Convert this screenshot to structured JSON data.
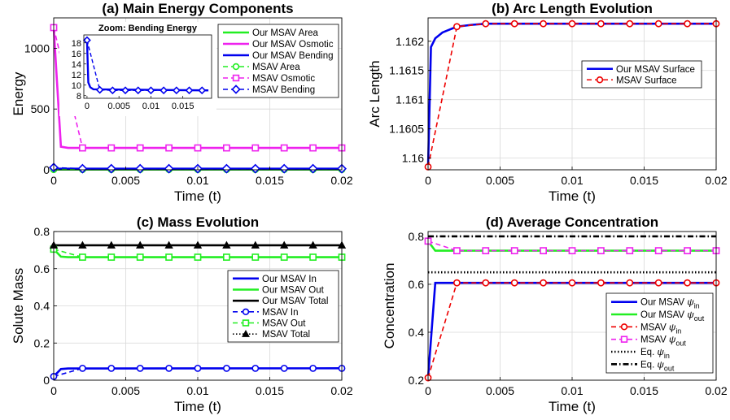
{
  "colors": {
    "green": "#22ee22",
    "magenta": "#ee22ee",
    "blue": "#0000ee",
    "red": "#ee0000",
    "black": "#000000",
    "grid": "#d8d8d8"
  },
  "chart_data": [
    {
      "id": "a",
      "type": "line",
      "title": "(a) Main Energy Components",
      "xlabel": "Time (t)",
      "ylabel": "Energy",
      "xlim": [
        0,
        0.02
      ],
      "ylim": [
        0,
        1250
      ],
      "xticks": [
        0,
        0.005,
        0.01,
        0.015,
        0.02
      ],
      "xtick_labels": [
        "0",
        "0.005",
        "0.01",
        "0.015",
        "0.02"
      ],
      "yticks": [
        0,
        500,
        1000
      ],
      "ytick_labels": [
        "0",
        "500",
        "1000"
      ],
      "legend_position": "top-right",
      "series": [
        {
          "name": "Our MSAV Area",
          "color": "green",
          "marker": "none",
          "x": [
            0,
            0.0002,
            0.02
          ],
          "y": [
            2,
            2,
            2
          ]
        },
        {
          "name": "Our MSAV Osmotic",
          "color": "magenta",
          "marker": "none",
          "x": [
            0,
            0.0005,
            0.001,
            0.02
          ],
          "y": [
            1170,
            190,
            180,
            180
          ]
        },
        {
          "name": "Our MSAV Bending",
          "color": "blue",
          "marker": "none",
          "x": [
            0,
            0.0002,
            0.0005,
            0.02
          ],
          "y": [
            18.5,
            10,
            9,
            9
          ]
        },
        {
          "name": "MSAV Area",
          "color": "green",
          "marker": "circle",
          "x": [
            0,
            0.002,
            0.004,
            0.006,
            0.008,
            0.01,
            0.012,
            0.014,
            0.016,
            0.018,
            0.02
          ],
          "y": [
            2,
            2,
            2,
            2,
            2,
            2,
            2,
            2,
            2,
            2,
            2
          ]
        },
        {
          "name": "MSAV Osmotic",
          "color": "magenta",
          "marker": "square",
          "x": [
            0,
            0.002,
            0.004,
            0.006,
            0.008,
            0.01,
            0.012,
            0.014,
            0.016,
            0.018,
            0.02
          ],
          "y": [
            1170,
            180,
            180,
            180,
            180,
            180,
            180,
            180,
            180,
            180,
            180
          ]
        },
        {
          "name": "MSAV Bending",
          "color": "blue",
          "marker": "diamond",
          "x": [
            0,
            0.002,
            0.004,
            0.006,
            0.008,
            0.01,
            0.012,
            0.014,
            0.016,
            0.018,
            0.02
          ],
          "y": [
            18.5,
            9,
            9,
            9,
            9,
            9,
            9,
            9,
            9,
            9,
            9
          ]
        }
      ],
      "inset": {
        "title": "Zoom: Bending Energy",
        "xlim": [
          -0.0005,
          0.0195
        ],
        "ylim": [
          7.5,
          19.5
        ],
        "xticks": [
          0,
          0.005,
          0.01,
          0.015
        ],
        "xtick_labels": [
          "0",
          "0.005",
          "0.01",
          "0.015"
        ],
        "yticks": [
          8,
          10,
          12,
          14,
          16,
          18
        ],
        "ytick_labels": [
          "8",
          "10",
          "12",
          "14",
          "16",
          "18"
        ],
        "series": [
          {
            "name": "Our MSAV Bending",
            "color": "blue",
            "marker": "none",
            "x": [
              0,
              0.0002,
              0.0005,
              0.001,
              0.019
            ],
            "y": [
              18.5,
              10.5,
              9.6,
              9.2,
              9.0
            ]
          },
          {
            "name": "MSAV Bending",
            "color": "blue",
            "marker": "diamond",
            "x": [
              0,
              0.002,
              0.004,
              0.006,
              0.008,
              0.01,
              0.012,
              0.014,
              0.016,
              0.018
            ],
            "y": [
              18.5,
              9.1,
              9.0,
              9.0,
              9.0,
              9.0,
              9.0,
              9.0,
              9.0,
              9.0
            ]
          }
        ]
      }
    },
    {
      "id": "b",
      "type": "line",
      "title": "(b) Arc Length Evolution",
      "xlabel": "Time (t)",
      "ylabel": "Arc Length",
      "xlim": [
        0,
        0.02
      ],
      "ylim": [
        1.1598,
        1.1624
      ],
      "xticks": [
        0,
        0.005,
        0.01,
        0.015,
        0.02
      ],
      "xtick_labels": [
        "0",
        "0.005",
        "0.01",
        "0.015",
        "0.02"
      ],
      "yticks": [
        1.16,
        1.1605,
        1.161,
        1.1615,
        1.162
      ],
      "ytick_labels": [
        "1.16",
        "1.1605",
        "1.161",
        "1.1615",
        "1.162"
      ],
      "legend_position": "right",
      "series": [
        {
          "name": "Our MSAV Surface",
          "color": "blue",
          "marker": "none",
          "x": [
            0,
            0.0002,
            0.0005,
            0.001,
            0.002,
            0.003,
            0.004,
            0.006,
            0.02
          ],
          "y": [
            1.15985,
            1.1619,
            1.16205,
            1.16215,
            1.16225,
            1.16228,
            1.1623,
            1.1623,
            1.1623
          ]
        },
        {
          "name": "MSAV Surface",
          "color": "red",
          "marker": "circle",
          "x": [
            0,
            0.002,
            0.004,
            0.006,
            0.008,
            0.01,
            0.012,
            0.014,
            0.016,
            0.018,
            0.02
          ],
          "y": [
            1.15985,
            1.16225,
            1.1623,
            1.1623,
            1.1623,
            1.1623,
            1.1623,
            1.1623,
            1.1623,
            1.1623,
            1.1623
          ]
        }
      ]
    },
    {
      "id": "c",
      "type": "line",
      "title": "(c) Mass Evolution",
      "xlabel": "Time (t)",
      "ylabel": "Solute Mass",
      "xlim": [
        0,
        0.02
      ],
      "ylim": [
        0,
        0.8
      ],
      "xticks": [
        0,
        0.005,
        0.01,
        0.015,
        0.02
      ],
      "xtick_labels": [
        "0",
        "0.005",
        "0.01",
        "0.015",
        "0.02"
      ],
      "yticks": [
        0,
        0.2,
        0.4,
        0.6,
        0.8
      ],
      "ytick_labels": [
        "0",
        "0.2",
        "0.4",
        "0.6",
        "0.8"
      ],
      "legend_position": "right",
      "series": [
        {
          "name": "Our MSAV In",
          "color": "blue",
          "marker": "none",
          "x": [
            0,
            0.0005,
            0.001,
            0.02
          ],
          "y": [
            0.02,
            0.06,
            0.063,
            0.064
          ]
        },
        {
          "name": "Our MSAV Out",
          "color": "green",
          "marker": "none",
          "x": [
            0,
            0.0005,
            0.001,
            0.02
          ],
          "y": [
            0.705,
            0.665,
            0.662,
            0.662
          ]
        },
        {
          "name": "Our MSAV Total",
          "color": "black",
          "marker": "none",
          "x": [
            0,
            0.02
          ],
          "y": [
            0.726,
            0.726
          ]
        },
        {
          "name": "MSAV In",
          "color": "blue",
          "marker": "circle",
          "x": [
            0,
            0.002,
            0.004,
            0.006,
            0.008,
            0.01,
            0.012,
            0.014,
            0.016,
            0.018,
            0.02
          ],
          "y": [
            0.02,
            0.064,
            0.064,
            0.064,
            0.064,
            0.064,
            0.064,
            0.064,
            0.064,
            0.064,
            0.064
          ]
        },
        {
          "name": "MSAV Out",
          "color": "green",
          "marker": "square",
          "x": [
            0,
            0.002,
            0.004,
            0.006,
            0.008,
            0.01,
            0.012,
            0.014,
            0.016,
            0.018,
            0.02
          ],
          "y": [
            0.705,
            0.662,
            0.662,
            0.662,
            0.662,
            0.662,
            0.662,
            0.662,
            0.662,
            0.662,
            0.662
          ]
        },
        {
          "name": "MSAV Total",
          "color": "black",
          "marker": "triangle",
          "dash": "dotted",
          "x": [
            0,
            0.002,
            0.004,
            0.006,
            0.008,
            0.01,
            0.012,
            0.014,
            0.016,
            0.018,
            0.02
          ],
          "y": [
            0.726,
            0.726,
            0.726,
            0.726,
            0.726,
            0.726,
            0.726,
            0.726,
            0.726,
            0.726,
            0.726
          ]
        }
      ]
    },
    {
      "id": "d",
      "type": "line",
      "title": "(d) Average Concentration",
      "xlabel": "Time (t)",
      "ylabel": "Concentration",
      "xlim": [
        0,
        0.02
      ],
      "ylim": [
        0.2,
        0.82
      ],
      "xticks": [
        0,
        0.005,
        0.01,
        0.015,
        0.02
      ],
      "xtick_labels": [
        "0",
        "0.005",
        "0.01",
        "0.015",
        "0.02"
      ],
      "yticks": [
        0.2,
        0.4,
        0.6,
        0.8
      ],
      "ytick_labels": [
        "0.2",
        "0.4",
        "0.6",
        "0.8"
      ],
      "legend_position": "bottom-right",
      "series": [
        {
          "name": "Our MSAV",
          "sub": "in",
          "color": "blue",
          "marker": "none",
          "x": [
            0,
            0.0005,
            0.02
          ],
          "y": [
            0.21,
            0.606,
            0.606
          ]
        },
        {
          "name": "Our MSAV",
          "sub": "out",
          "color": "green",
          "marker": "none",
          "x": [
            0,
            0.0005,
            0.02
          ],
          "y": [
            0.78,
            0.74,
            0.74
          ]
        },
        {
          "name": "MSAV",
          "sub": "in",
          "color": "red",
          "marker": "circle",
          "x": [
            0,
            0.002,
            0.004,
            0.006,
            0.008,
            0.01,
            0.012,
            0.014,
            0.016,
            0.018,
            0.02
          ],
          "y": [
            0.21,
            0.606,
            0.606,
            0.606,
            0.606,
            0.606,
            0.606,
            0.606,
            0.606,
            0.606,
            0.606
          ]
        },
        {
          "name": "MSAV",
          "sub": "out",
          "color": "magenta",
          "marker": "square",
          "x": [
            0,
            0.002,
            0.004,
            0.006,
            0.008,
            0.01,
            0.012,
            0.014,
            0.016,
            0.018,
            0.02
          ],
          "y": [
            0.78,
            0.74,
            0.74,
            0.74,
            0.74,
            0.74,
            0.74,
            0.74,
            0.74,
            0.74,
            0.74
          ]
        },
        {
          "name": "Eq.",
          "sub": "in",
          "color": "black",
          "marker": "none",
          "dash": "dotted",
          "x": [
            0,
            0.02
          ],
          "y": [
            0.65,
            0.65
          ]
        },
        {
          "name": "Eq.",
          "sub": "out",
          "color": "black",
          "marker": "none",
          "dash": "dashdot",
          "x": [
            0,
            0.02
          ],
          "y": [
            0.8,
            0.8
          ]
        }
      ],
      "psi_symbol": "ψ"
    }
  ]
}
